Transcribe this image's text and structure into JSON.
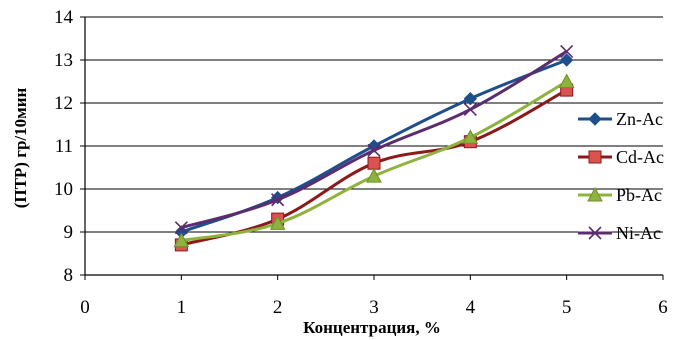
{
  "chart_data": {
    "type": "line",
    "title": "",
    "xlabel": "Концентрация, %",
    "ylabel": "(ПТР) гр/10мин",
    "xlim": [
      0,
      6
    ],
    "ylim": [
      8,
      14
    ],
    "xticks": [
      0,
      1,
      2,
      3,
      4,
      5,
      6
    ],
    "yticks": [
      8,
      9,
      10,
      11,
      12,
      13,
      14
    ],
    "grid": "horizontal",
    "legend_position": "right",
    "x": [
      1,
      2,
      3,
      4,
      5
    ],
    "series": [
      {
        "name": "Zn-Ac",
        "color": "#1F4E8C",
        "marker": "diamond",
        "values": [
          9.0,
          9.8,
          11.0,
          12.1,
          13.0
        ]
      },
      {
        "name": "Cd-Ac",
        "color": "#8B1A1A",
        "marker": "square",
        "values": [
          8.7,
          9.3,
          10.6,
          11.1,
          12.3
        ]
      },
      {
        "name": "Pb-Ac",
        "color": "#8DB33C",
        "marker": "triangle",
        "values": [
          8.8,
          9.2,
          10.3,
          11.2,
          12.5
        ]
      },
      {
        "name": "Ni-Ac",
        "color": "#5B2C6F",
        "marker": "x",
        "values": [
          9.1,
          9.75,
          10.9,
          11.85,
          13.2
        ]
      }
    ]
  }
}
